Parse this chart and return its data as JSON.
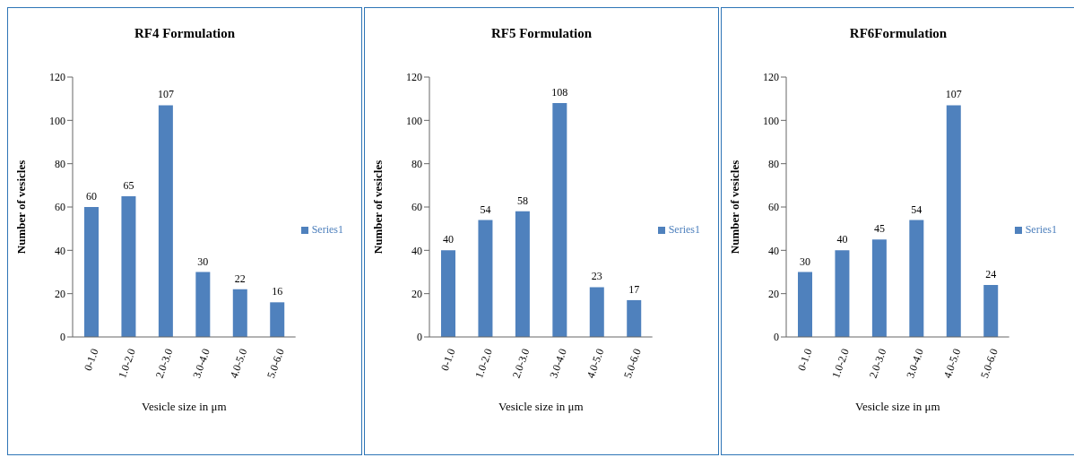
{
  "chart_data": [
    {
      "type": "bar",
      "title": "RF4 Formulation",
      "xlabel": "Vesicle size in μm",
      "ylabel": "Number of vesicles",
      "categories": [
        "0-1.0",
        "1.0-2.0",
        "2.0-3.0",
        "3.0-4.0",
        "4.0-5.0",
        "5.0-6.0"
      ],
      "series": [
        {
          "name": "Series1",
          "color": "#4f81bd",
          "values": [
            60,
            65,
            107,
            30,
            22,
            16
          ]
        }
      ],
      "ylim": [
        0,
        120
      ],
      "yticks": [
        0,
        20,
        40,
        60,
        80,
        100,
        120
      ],
      "grid": false,
      "legend": "right",
      "data_labels": true
    },
    {
      "type": "bar",
      "title": "RF5 Formulation",
      "xlabel": "Vesicle size in μm",
      "ylabel": "Number of vesicles",
      "categories": [
        "0-1.0",
        "1.0-2.0",
        "2.0-3.0",
        "3.0-4.0",
        "4.0-5.0",
        "5.0-6.0"
      ],
      "series": [
        {
          "name": "Series1",
          "color": "#4f81bd",
          "values": [
            40,
            54,
            58,
            108,
            23,
            17
          ]
        }
      ],
      "ylim": [
        0,
        120
      ],
      "yticks": [
        0,
        20,
        40,
        60,
        80,
        100,
        120
      ],
      "grid": false,
      "legend": "right",
      "data_labels": true
    },
    {
      "type": "bar",
      "title": "RF6Formulation",
      "xlabel": "Vesicle size in μm",
      "ylabel": "Number of vesicles",
      "categories": [
        "0-1.0",
        "1.0-2.0",
        "2.0-3.0",
        "3.0-4.0",
        "4.0-5.0",
        "5.0-6.0"
      ],
      "series": [
        {
          "name": "Series1",
          "color": "#4f81bd",
          "values": [
            30,
            40,
            45,
            54,
            107,
            24
          ]
        }
      ],
      "ylim": [
        0,
        120
      ],
      "yticks": [
        0,
        20,
        40,
        60,
        80,
        100,
        120
      ],
      "grid": false,
      "legend": "right",
      "data_labels": true
    }
  ]
}
